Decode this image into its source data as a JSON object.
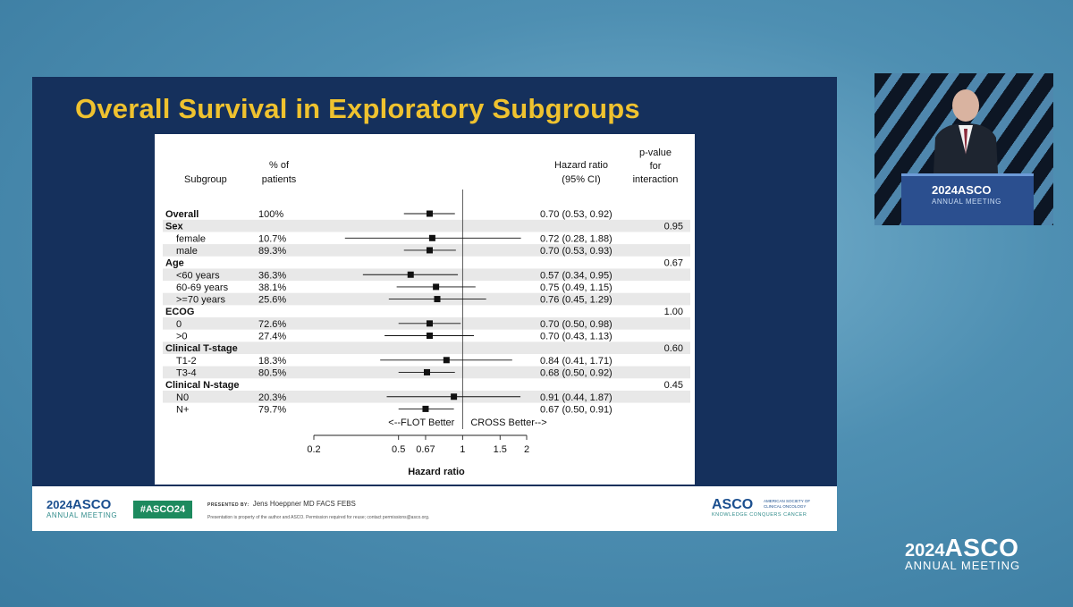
{
  "slide": {
    "title": "Overall Survival in Exploratory Subgroups"
  },
  "chart_data": {
    "type": "forest",
    "columns": {
      "subgroup": "Subgroup",
      "pct_line1": "% of",
      "pct_line2": "patients",
      "hr_line1": "Hazard ratio",
      "hr_line2": "(95% CI)",
      "p_line1": "p-value",
      "p_line2": "for",
      "p_line3": "interaction"
    },
    "rows": [
      {
        "label": "Overall",
        "header": true,
        "pct": "100%",
        "hr": 0.7,
        "lo": 0.53,
        "hi": 0.92,
        "hr_text": "0.70 (0.53, 0.92)",
        "p": ""
      },
      {
        "label": "Sex",
        "header": true,
        "pct": "",
        "hr": null,
        "hr_text": "",
        "p": "0.95"
      },
      {
        "label": "female",
        "header": false,
        "pct": "10.7%",
        "hr": 0.72,
        "lo": 0.28,
        "hi": 1.88,
        "hr_text": "0.72 (0.28, 1.88)",
        "p": ""
      },
      {
        "label": "male",
        "header": false,
        "pct": "89.3%",
        "hr": 0.7,
        "lo": 0.53,
        "hi": 0.93,
        "hr_text": "0.70 (0.53, 0.93)",
        "p": ""
      },
      {
        "label": "Age",
        "header": true,
        "pct": "",
        "hr": null,
        "hr_text": "",
        "p": "0.67"
      },
      {
        "label": "<60 years",
        "header": false,
        "pct": "36.3%",
        "hr": 0.57,
        "lo": 0.34,
        "hi": 0.95,
        "hr_text": "0.57 (0.34, 0.95)",
        "p": ""
      },
      {
        "label": "60-69 years",
        "header": false,
        "pct": "38.1%",
        "hr": 0.75,
        "lo": 0.49,
        "hi": 1.15,
        "hr_text": "0.75 (0.49, 1.15)",
        "p": ""
      },
      {
        "label": ">=70 years",
        "header": false,
        "pct": "25.6%",
        "hr": 0.76,
        "lo": 0.45,
        "hi": 1.29,
        "hr_text": "0.76 (0.45, 1.29)",
        "p": ""
      },
      {
        "label": "ECOG",
        "header": true,
        "pct": "",
        "hr": null,
        "hr_text": "",
        "p": "1.00"
      },
      {
        "label": "0",
        "header": false,
        "pct": "72.6%",
        "hr": 0.7,
        "lo": 0.5,
        "hi": 0.98,
        "hr_text": "0.70 (0.50, 0.98)",
        "p": ""
      },
      {
        "label": ">0",
        "header": false,
        "pct": "27.4%",
        "hr": 0.7,
        "lo": 0.43,
        "hi": 1.13,
        "hr_text": "0.70 (0.43, 1.13)",
        "p": ""
      },
      {
        "label": "Clinical T-stage",
        "header": true,
        "pct": "",
        "hr": null,
        "hr_text": "",
        "p": "0.60"
      },
      {
        "label": "T1-2",
        "header": false,
        "pct": "18.3%",
        "hr": 0.84,
        "lo": 0.41,
        "hi": 1.71,
        "hr_text": "0.84 (0.41, 1.71)",
        "p": ""
      },
      {
        "label": "T3-4",
        "header": false,
        "pct": "80.5%",
        "hr": 0.68,
        "lo": 0.5,
        "hi": 0.92,
        "hr_text": "0.68 (0.50, 0.92)",
        "p": ""
      },
      {
        "label": "Clinical N-stage",
        "header": true,
        "pct": "",
        "hr": null,
        "hr_text": "",
        "p": "0.45"
      },
      {
        "label": "N0",
        "header": false,
        "pct": "20.3%",
        "hr": 0.91,
        "lo": 0.44,
        "hi": 1.87,
        "hr_text": "0.91 (0.44, 1.87)",
        "p": ""
      },
      {
        "label": "N+",
        "header": false,
        "pct": "79.7%",
        "hr": 0.67,
        "lo": 0.5,
        "hi": 0.91,
        "hr_text": "0.67 (0.50, 0.91)",
        "p": ""
      }
    ],
    "left_favor": "<--FLOT Better",
    "right_favor": "CROSS Better-->",
    "x_ticks": [
      0.2,
      0.5,
      0.67,
      1,
      1.5,
      2
    ],
    "x_tick_labels": [
      "0.2",
      "0.5",
      "0.67",
      "1",
      "1.5",
      "2"
    ],
    "xlabel": "Hazard ratio",
    "xscale": "log",
    "xlim": [
      0.2,
      2
    ],
    "reference_line": 1
  },
  "footer": {
    "logo_year": "2024",
    "logo_name": "ASCO",
    "logo_sub": "ANNUAL MEETING",
    "hashtag": "#ASCO24",
    "presented_label": "PRESENTED BY:",
    "presenter": "Jens Hoeppner MD FACS FEBS",
    "notice": "Presentation is property of the author and ASCO. Permission required for reuse; contact permissions@asco.org.",
    "society_name": "ASCO",
    "society_full": "AMERICAN SOCIETY OF CLINICAL ONCOLOGY",
    "society_tagline": "KNOWLEDGE CONQUERS CANCER"
  },
  "speaker": {
    "podium_year": "2024",
    "podium_name": "ASCO",
    "podium_sub": "ANNUAL MEETING"
  },
  "corner_logo": {
    "year": "2024",
    "name": "ASCO",
    "sub": "ANNUAL MEETING"
  }
}
